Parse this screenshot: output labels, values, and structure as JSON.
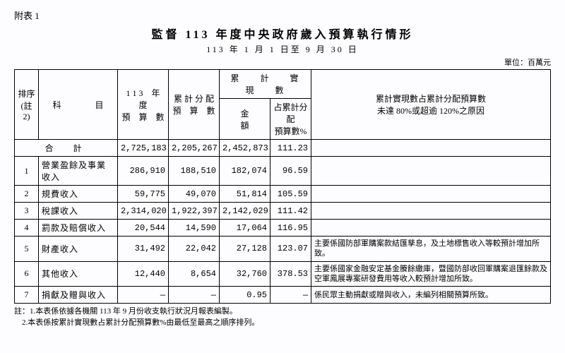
{
  "attach": "附表 1",
  "title": "監督 113 年度中央政府歲入預算執行情形",
  "subtitle": "113 年 1 月 1 日至 9 月 30 日",
  "unit": "單位：百萬元",
  "headers": {
    "rank": "排序\n(註2)",
    "subject": "科　　　　目",
    "budget113": "1 1 3　年　度\n預　算　數",
    "cumAlloc": "累 計 分 配\n預　算　數",
    "cumRealGroup": "累　　計　　實　　現　　數",
    "amount": "金　　　　　額",
    "pct": "占累計分配\n預算數%",
    "reason": "累計實現數占累計分配預算數\n未達 80%或超逾 120%之原因"
  },
  "totalLabel": "合　計",
  "total": {
    "b113": "2,725,183",
    "alloc": "2,205,267",
    "amt": "2,452,873",
    "pct": "111.23",
    "reason": ""
  },
  "rows": [
    {
      "idx": "1",
      "subject": "營業盈餘及事業收入",
      "b113": "286,910",
      "alloc": "188,510",
      "amt": "182,074",
      "pct": "96.59",
      "reason": ""
    },
    {
      "idx": "2",
      "subject": "規費收入",
      "b113": "59,775",
      "alloc": "49,070",
      "amt": "51,814",
      "pct": "105.59",
      "reason": ""
    },
    {
      "idx": "3",
      "subject": "稅課收入",
      "b113": "2,314,020",
      "alloc": "1,922,397",
      "amt": "2,142,029",
      "pct": "111.42",
      "reason": ""
    },
    {
      "idx": "4",
      "subject": "罰款及賠償收入",
      "b113": "20,544",
      "alloc": "14,590",
      "amt": "17,064",
      "pct": "116.95",
      "reason": ""
    },
    {
      "idx": "5",
      "subject": "財產收入",
      "b113": "31,492",
      "alloc": "22,042",
      "amt": "27,128",
      "pct": "123.07",
      "reason": "主要係國防部軍購案款結匯孳息，及土地標售收入等較預計增加所致。"
    },
    {
      "idx": "6",
      "subject": "其他收入",
      "b113": "12,440",
      "alloc": "8,654",
      "amt": "32,760",
      "pct": "378.53",
      "reason": "主要係國家金融安定基金賸餘繳庫，暨國防部收回軍購案退匯餘款及空軍鳳展專案研發費用等收入較預計增加所致。"
    },
    {
      "idx": "7",
      "subject": "捐獻及贈與收入",
      "b113": "—",
      "alloc": "—",
      "amt": "0.95",
      "pct": "—",
      "reason": "係民眾主動捐獻或贈與收入，未編列相關預算所致。"
    }
  ],
  "notes": {
    "prefix": "註：",
    "n1": "1.本表係依據各機關 113 年 9 月份收支執行狀況月報表編製。",
    "n2": "2.本表係按累計實現數占累計分配預算數%由最低至最高之順序排列。"
  }
}
